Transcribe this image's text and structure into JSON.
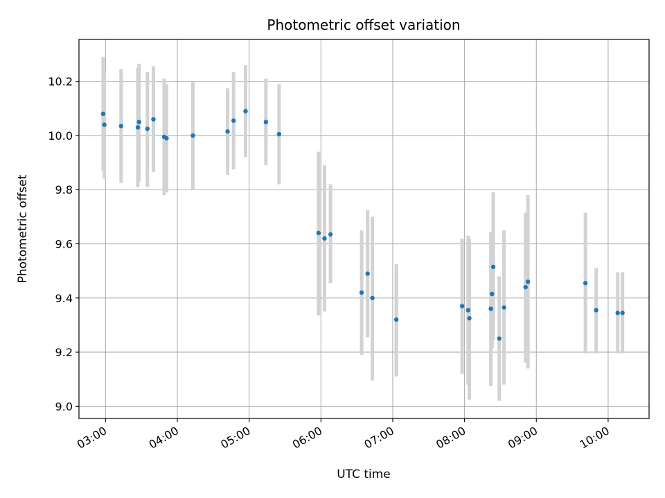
{
  "chart_data": {
    "type": "scatter",
    "title": "Photometric offset variation",
    "xlabel": "UTC time",
    "ylabel": "Photometric offset",
    "x_ticks": [
      "03:00",
      "04:00",
      "05:00",
      "06:00",
      "07:00",
      "08:00",
      "09:00",
      "10:00"
    ],
    "x_tick_hours": [
      3,
      4,
      5,
      6,
      7,
      8,
      9,
      10
    ],
    "xlim_hours": [
      2.63,
      10.57
    ],
    "y_ticks": [
      9.0,
      9.2,
      9.4,
      9.6,
      9.8,
      10.0,
      10.2
    ],
    "ylim": [
      8.955,
      10.355
    ],
    "grid": true,
    "colors": {
      "marker": "#1f77b4",
      "errorbar": "#d3d3d3",
      "grid": "#b0b0b0"
    },
    "points": [
      {
        "t": "02:58",
        "y": 10.08,
        "ylo": 9.87,
        "yhi": 10.29
      },
      {
        "t": "02:59",
        "y": 10.04,
        "ylo": 9.84,
        "yhi": 10.24
      },
      {
        "t": "03:13",
        "y": 10.035,
        "ylo": 9.825,
        "yhi": 10.245
      },
      {
        "t": "03:27",
        "y": 10.03,
        "ylo": 9.81,
        "yhi": 10.25
      },
      {
        "t": "03:28",
        "y": 10.05,
        "ylo": 9.83,
        "yhi": 10.265
      },
      {
        "t": "03:35",
        "y": 10.025,
        "ylo": 9.81,
        "yhi": 10.235
      },
      {
        "t": "03:40",
        "y": 10.06,
        "ylo": 9.865,
        "yhi": 10.255
      },
      {
        "t": "03:49",
        "y": 9.995,
        "ylo": 9.78,
        "yhi": 10.21
      },
      {
        "t": "03:51",
        "y": 9.99,
        "ylo": 9.79,
        "yhi": 10.19
      },
      {
        "t": "04:13",
        "y": 10.0,
        "ylo": 9.8,
        "yhi": 10.2
      },
      {
        "t": "04:42",
        "y": 10.015,
        "ylo": 9.855,
        "yhi": 10.175
      },
      {
        "t": "04:47",
        "y": 10.055,
        "ylo": 9.875,
        "yhi": 10.235
      },
      {
        "t": "04:57",
        "y": 10.09,
        "ylo": 9.92,
        "yhi": 10.26
      },
      {
        "t": "05:14",
        "y": 10.05,
        "ylo": 9.89,
        "yhi": 10.21
      },
      {
        "t": "05:25",
        "y": 10.005,
        "ylo": 9.82,
        "yhi": 10.19
      },
      {
        "t": "05:58",
        "y": 9.64,
        "ylo": 9.335,
        "yhi": 9.94
      },
      {
        "t": "06:03",
        "y": 9.62,
        "ylo": 9.35,
        "yhi": 9.89
      },
      {
        "t": "06:08",
        "y": 9.635,
        "ylo": 9.455,
        "yhi": 9.82
      },
      {
        "t": "06:34",
        "y": 9.42,
        "ylo": 9.19,
        "yhi": 9.65
      },
      {
        "t": "06:39",
        "y": 9.49,
        "ylo": 9.255,
        "yhi": 9.725
      },
      {
        "t": "06:43",
        "y": 9.4,
        "ylo": 9.095,
        "yhi": 9.7
      },
      {
        "t": "07:03",
        "y": 9.32,
        "ylo": 9.11,
        "yhi": 9.525
      },
      {
        "t": "07:58",
        "y": 9.37,
        "ylo": 9.12,
        "yhi": 9.62
      },
      {
        "t": "08:03",
        "y": 9.355,
        "ylo": 9.08,
        "yhi": 9.63
      },
      {
        "t": "08:04",
        "y": 9.325,
        "ylo": 9.025,
        "yhi": 9.62
      },
      {
        "t": "08:22",
        "y": 9.36,
        "ylo": 9.075,
        "yhi": 9.645
      },
      {
        "t": "08:24",
        "y": 9.515,
        "ylo": 9.245,
        "yhi": 9.79
      },
      {
        "t": "08:23",
        "y": 9.415,
        "ylo": 9.215,
        "yhi": 9.615
      },
      {
        "t": "08:29",
        "y": 9.25,
        "ylo": 9.02,
        "yhi": 9.48
      },
      {
        "t": "08:33",
        "y": 9.365,
        "ylo": 9.08,
        "yhi": 9.65
      },
      {
        "t": "08:51",
        "y": 9.44,
        "ylo": 9.16,
        "yhi": 9.715
      },
      {
        "t": "08:53",
        "y": 9.46,
        "ylo": 9.14,
        "yhi": 9.78
      },
      {
        "t": "09:41",
        "y": 9.455,
        "ylo": 9.195,
        "yhi": 9.715
      },
      {
        "t": "09:50",
        "y": 9.355,
        "ylo": 9.195,
        "yhi": 9.51
      },
      {
        "t": "10:08",
        "y": 9.345,
        "ylo": 9.195,
        "yhi": 9.495
      },
      {
        "t": "10:12",
        "y": 9.345,
        "ylo": 9.195,
        "yhi": 9.495
      }
    ]
  }
}
